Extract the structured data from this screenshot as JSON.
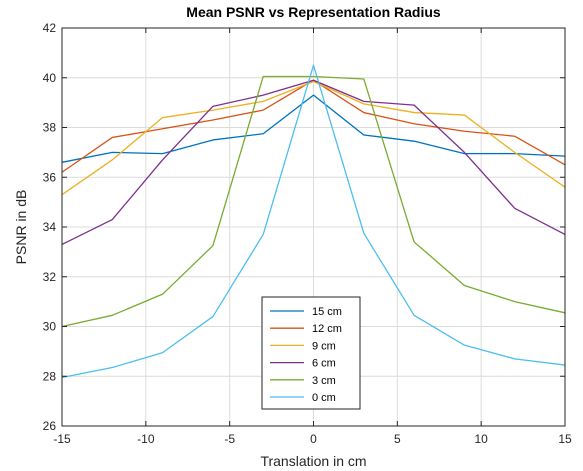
{
  "chart_data": {
    "type": "line",
    "title": "Mean PSNR vs Representation Radius",
    "xlabel": "Translation in cm",
    "ylabel": "PSNR in dB",
    "xlim": [
      -15,
      15
    ],
    "ylim": [
      26,
      42
    ],
    "xticks": [
      -15,
      -10,
      -5,
      0,
      5,
      10,
      15
    ],
    "yticks": [
      26,
      28,
      30,
      32,
      34,
      36,
      38,
      40,
      42
    ],
    "grid": true,
    "legend_position": "bottom-center",
    "x": [
      -15,
      -12,
      -9,
      -6,
      -3,
      0,
      3,
      6,
      9,
      12,
      15
    ],
    "series": [
      {
        "name": "15 cm",
        "color": "#0072BD",
        "values": [
          36.6,
          37.0,
          36.95,
          37.5,
          37.75,
          39.3,
          37.7,
          37.45,
          36.95,
          36.95,
          36.85
        ]
      },
      {
        "name": "12 cm",
        "color": "#D95319",
        "values": [
          36.2,
          37.6,
          37.95,
          38.3,
          38.7,
          39.9,
          38.6,
          38.15,
          37.85,
          37.65,
          36.5
        ]
      },
      {
        "name": "9 cm",
        "color": "#EDB120",
        "values": [
          35.3,
          36.7,
          38.4,
          38.7,
          39.05,
          39.85,
          38.95,
          38.6,
          38.5,
          37.0,
          35.6
        ]
      },
      {
        "name": "6 cm",
        "color": "#7E2F8E",
        "values": [
          33.3,
          34.3,
          36.7,
          38.85,
          39.3,
          39.9,
          39.05,
          38.9,
          37.0,
          34.75,
          33.7
        ]
      },
      {
        "name": "3 cm",
        "color": "#77AC30",
        "values": [
          30.0,
          30.45,
          31.3,
          33.25,
          40.05,
          40.05,
          39.95,
          33.4,
          31.65,
          31.0,
          30.55
        ]
      },
      {
        "name": "0 cm",
        "color": "#4DBEEE",
        "values": [
          27.95,
          28.35,
          28.95,
          30.4,
          33.7,
          40.5,
          33.75,
          30.45,
          29.25,
          28.7,
          28.45
        ]
      }
    ]
  }
}
